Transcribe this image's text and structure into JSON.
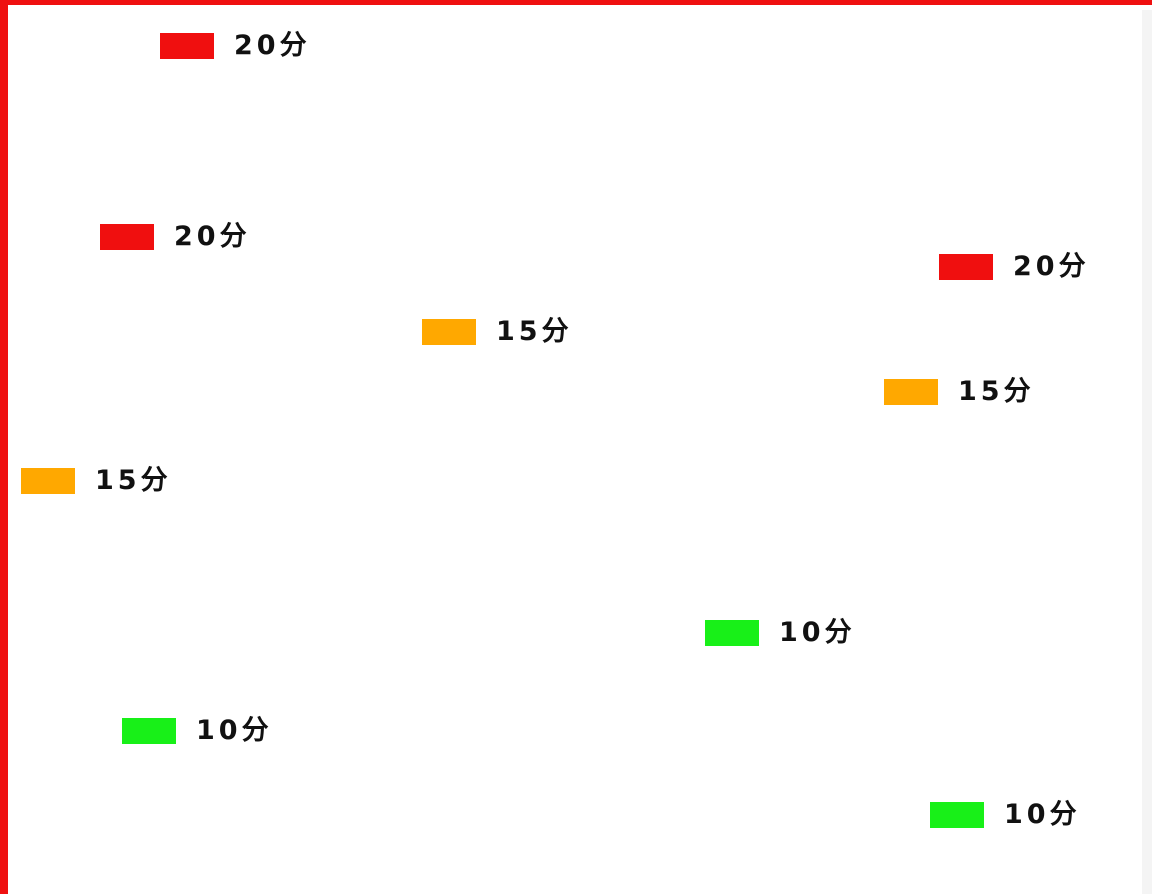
{
  "colors": {
    "border": "#ef1010",
    "high": "#f00f0f",
    "mid": "#ffa800",
    "low": "#18f018"
  },
  "scores": [
    {
      "label": "20分",
      "level": "high"
    },
    {
      "label": "20分",
      "level": "high"
    },
    {
      "label": "20分",
      "level": "high"
    },
    {
      "label": "15分",
      "level": "mid"
    },
    {
      "label": "15分",
      "level": "mid"
    },
    {
      "label": "15分",
      "level": "mid"
    },
    {
      "label": "10分",
      "level": "low"
    },
    {
      "label": "10分",
      "level": "low"
    },
    {
      "label": "10分",
      "level": "low"
    }
  ]
}
